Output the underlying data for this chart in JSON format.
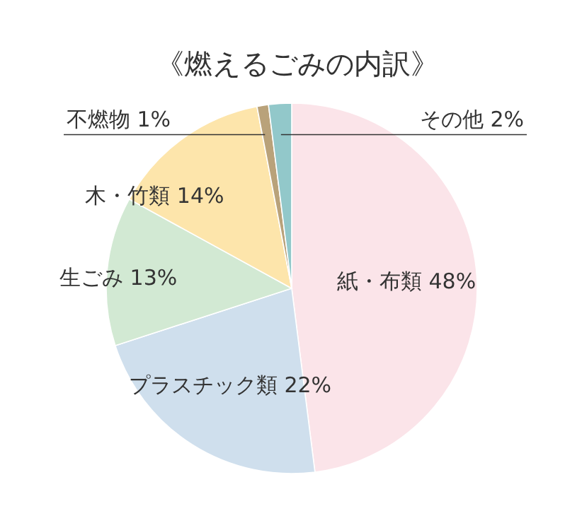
{
  "chart_data": {
    "type": "pie",
    "title": "《燃えるごみの内訳》",
    "categories": [
      "紙・布類",
      "プラスチック類",
      "生ごみ",
      "木・竹類",
      "不燃物",
      "その他"
    ],
    "values": [
      48,
      22,
      13,
      14,
      1,
      2
    ],
    "value_labels": [
      "48%",
      "22%",
      "13%",
      "14%",
      "1%",
      "2%"
    ],
    "colors": [
      "#fbe4e9",
      "#cfdfed",
      "#d2e9d3",
      "#fde5ab",
      "#b9a27a",
      "#92c8ca"
    ]
  }
}
